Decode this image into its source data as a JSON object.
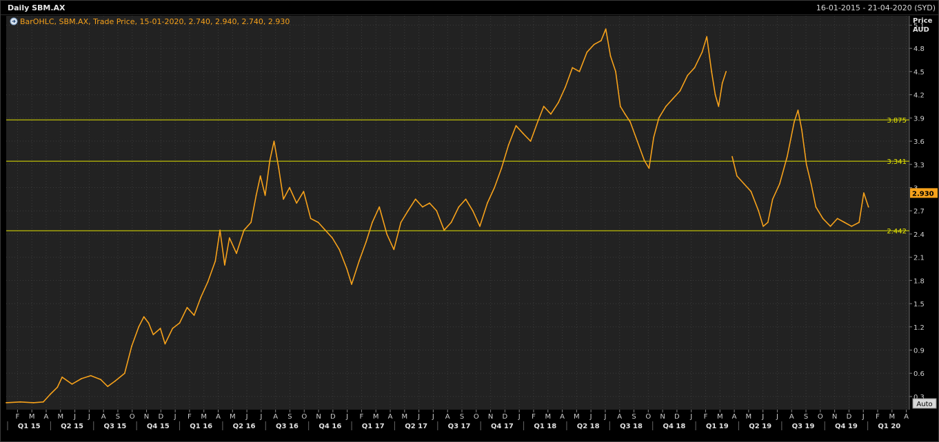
{
  "header": {
    "title": "Daily SBM.AX",
    "date_range": "16-01-2015 - 21-04-2020 (SYD)"
  },
  "legend": {
    "icon": "circle-arrow-icon",
    "text": "BarOHLC, SBM.AX, Trade Price, 15-01-2020, 2.740, 2.940, 2.740, 2.930"
  },
  "axis": {
    "price_label": "Price",
    "currency_label": "AUD",
    "auto_label": "Auto"
  },
  "colors": {
    "background": "#222222",
    "series": "#f7a21b",
    "level_line": "#e6e600",
    "grid": "#3c3c3c"
  },
  "chart_data": {
    "type": "line",
    "series_name": "SBM.AX",
    "x_start": "2015-01-16",
    "x_end": "2020-04-21",
    "ylim": [
      0.13,
      5.22
    ],
    "y_ticks": [
      "0.3",
      "0.6",
      "0.9",
      "1.2",
      "1.5",
      "1.8",
      "2.1",
      "2.4",
      "2.7",
      "3",
      "3.3",
      "3.6",
      "3.9",
      "4.2",
      "4.5",
      "4.8",
      "5.1"
    ],
    "month_labels": [
      "F",
      "M",
      "A",
      "M",
      "J",
      "J",
      "A",
      "S",
      "O",
      "N",
      "D",
      "J",
      "F",
      "M",
      "A",
      "M",
      "J",
      "J",
      "A",
      "S",
      "O",
      "N",
      "D",
      "J",
      "F",
      "M",
      "A",
      "M",
      "J",
      "J",
      "A",
      "S",
      "O",
      "N",
      "D",
      "J",
      "F",
      "M",
      "A",
      "M",
      "J",
      "J",
      "A",
      "S",
      "O",
      "N",
      "D",
      "J",
      "F",
      "M",
      "A",
      "M",
      "J",
      "J",
      "A",
      "S",
      "O",
      "N",
      "D",
      "J",
      "F",
      "M",
      "A"
    ],
    "quarter_labels": [
      "Q1 15",
      "Q2 15",
      "Q3 15",
      "Q4 15",
      "Q1 16",
      "Q2 16",
      "Q3 16",
      "Q4 16",
      "Q1 17",
      "Q2 17",
      "Q3 17",
      "Q4 17",
      "Q1 18",
      "Q2 18",
      "Q3 18",
      "Q4 18",
      "Q1 19",
      "Q2 19",
      "Q3 19",
      "Q4 19",
      "Q1 20"
    ],
    "last_price": "2.930",
    "horizontal_levels": [
      {
        "value": 3.875,
        "label": "3.875"
      },
      {
        "value": 3.341,
        "label": "3.341"
      },
      {
        "value": 2.442,
        "label": "2.442"
      }
    ],
    "points": [
      [
        "2015-01-16",
        0.22
      ],
      [
        "2015-02-15",
        0.23
      ],
      [
        "2015-03-15",
        0.22
      ],
      [
        "2015-04-05",
        0.23
      ],
      [
        "2015-04-20",
        0.33
      ],
      [
        "2015-05-05",
        0.42
      ],
      [
        "2015-05-15",
        0.55
      ],
      [
        "2015-06-05",
        0.46
      ],
      [
        "2015-06-25",
        0.53
      ],
      [
        "2015-07-15",
        0.57
      ],
      [
        "2015-08-05",
        0.52
      ],
      [
        "2015-08-20",
        0.43
      ],
      [
        "2015-09-05",
        0.5
      ],
      [
        "2015-09-25",
        0.6
      ],
      [
        "2015-10-10",
        0.95
      ],
      [
        "2015-10-25",
        1.2
      ],
      [
        "2015-11-05",
        1.33
      ],
      [
        "2015-11-15",
        1.25
      ],
      [
        "2015-11-25",
        1.1
      ],
      [
        "2015-12-10",
        1.18
      ],
      [
        "2015-12-20",
        0.98
      ],
      [
        "2016-01-05",
        1.18
      ],
      [
        "2016-01-20",
        1.25
      ],
      [
        "2016-02-05",
        1.45
      ],
      [
        "2016-02-20",
        1.35
      ],
      [
        "2016-03-05",
        1.58
      ],
      [
        "2016-03-20",
        1.78
      ],
      [
        "2016-04-05",
        2.05
      ],
      [
        "2016-04-15",
        2.45
      ],
      [
        "2016-04-25",
        2.0
      ],
      [
        "2016-05-05",
        2.35
      ],
      [
        "2016-05-20",
        2.15
      ],
      [
        "2016-06-05",
        2.45
      ],
      [
        "2016-06-20",
        2.55
      ],
      [
        "2016-07-01",
        2.9
      ],
      [
        "2016-07-10",
        3.15
      ],
      [
        "2016-07-20",
        2.9
      ],
      [
        "2016-07-30",
        3.35
      ],
      [
        "2016-08-08",
        3.6
      ],
      [
        "2016-08-18",
        3.25
      ],
      [
        "2016-08-28",
        2.85
      ],
      [
        "2016-09-10",
        3.0
      ],
      [
        "2016-09-25",
        2.8
      ],
      [
        "2016-10-10",
        2.95
      ],
      [
        "2016-10-25",
        2.6
      ],
      [
        "2016-11-10",
        2.55
      ],
      [
        "2016-11-25",
        2.45
      ],
      [
        "2016-12-10",
        2.35
      ],
      [
        "2016-12-25",
        2.2
      ],
      [
        "2017-01-10",
        1.95
      ],
      [
        "2017-01-20",
        1.75
      ],
      [
        "2017-02-05",
        2.05
      ],
      [
        "2017-02-20",
        2.3
      ],
      [
        "2017-03-05",
        2.55
      ],
      [
        "2017-03-20",
        2.75
      ],
      [
        "2017-04-05",
        2.4
      ],
      [
        "2017-04-20",
        2.2
      ],
      [
        "2017-05-05",
        2.55
      ],
      [
        "2017-05-20",
        2.7
      ],
      [
        "2017-06-05",
        2.85
      ],
      [
        "2017-06-20",
        2.75
      ],
      [
        "2017-07-05",
        2.8
      ],
      [
        "2017-07-20",
        2.7
      ],
      [
        "2017-08-05",
        2.45
      ],
      [
        "2017-08-20",
        2.55
      ],
      [
        "2017-09-05",
        2.75
      ],
      [
        "2017-09-20",
        2.85
      ],
      [
        "2017-10-05",
        2.7
      ],
      [
        "2017-10-20",
        2.5
      ],
      [
        "2017-11-05",
        2.8
      ],
      [
        "2017-11-20",
        3.0
      ],
      [
        "2017-12-05",
        3.25
      ],
      [
        "2017-12-20",
        3.55
      ],
      [
        "2018-01-05",
        3.8
      ],
      [
        "2018-01-20",
        3.7
      ],
      [
        "2018-02-05",
        3.6
      ],
      [
        "2018-02-20",
        3.85
      ],
      [
        "2018-03-05",
        4.05
      ],
      [
        "2018-03-20",
        3.95
      ],
      [
        "2018-04-05",
        4.1
      ],
      [
        "2018-04-20",
        4.3
      ],
      [
        "2018-05-05",
        4.55
      ],
      [
        "2018-05-20",
        4.5
      ],
      [
        "2018-06-05",
        4.75
      ],
      [
        "2018-06-20",
        4.85
      ],
      [
        "2018-07-05",
        4.9
      ],
      [
        "2018-07-15",
        5.05
      ],
      [
        "2018-07-25",
        4.7
      ],
      [
        "2018-08-05",
        4.5
      ],
      [
        "2018-08-15",
        4.05
      ],
      [
        "2018-08-25",
        3.95
      ],
      [
        "2018-09-05",
        3.85
      ],
      [
        "2018-09-20",
        3.6
      ],
      [
        "2018-10-05",
        3.35
      ],
      [
        "2018-10-15",
        3.25
      ],
      [
        "2018-10-25",
        3.65
      ],
      [
        "2018-11-05",
        3.9
      ],
      [
        "2018-11-20",
        4.05
      ],
      [
        "2018-12-05",
        4.15
      ],
      [
        "2018-12-20",
        4.25
      ],
      [
        "2019-01-05",
        4.45
      ],
      [
        "2019-01-20",
        4.55
      ],
      [
        "2019-02-05",
        4.75
      ],
      [
        "2019-02-15",
        4.95
      ],
      [
        "2019-02-25",
        4.5
      ],
      [
        "2019-03-05",
        4.2
      ],
      [
        "2019-03-12",
        4.05
      ],
      [
        "2019-03-20",
        4.35
      ],
      [
        "2019-03-28",
        4.5
      ],
      [
        "2019-04-10",
        3.4
      ],
      [
        "2019-04-20",
        3.15
      ],
      [
        "2019-05-05",
        3.05
      ],
      [
        "2019-05-20",
        2.95
      ],
      [
        "2019-06-05",
        2.7
      ],
      [
        "2019-06-15",
        2.5
      ],
      [
        "2019-06-25",
        2.55
      ],
      [
        "2019-07-05",
        2.85
      ],
      [
        "2019-07-20",
        3.05
      ],
      [
        "2019-08-05",
        3.4
      ],
      [
        "2019-08-20",
        3.85
      ],
      [
        "2019-08-28",
        4.0
      ],
      [
        "2019-09-05",
        3.75
      ],
      [
        "2019-09-15",
        3.3
      ],
      [
        "2019-09-25",
        3.05
      ],
      [
        "2019-10-05",
        2.75
      ],
      [
        "2019-10-20",
        2.6
      ],
      [
        "2019-11-05",
        2.5
      ],
      [
        "2019-11-20",
        2.6
      ],
      [
        "2019-12-05",
        2.55
      ],
      [
        "2019-12-20",
        2.5
      ],
      [
        "2020-01-05",
        2.55
      ],
      [
        "2020-01-15",
        2.93
      ],
      [
        "2020-01-25",
        2.75
      ]
    ]
  }
}
